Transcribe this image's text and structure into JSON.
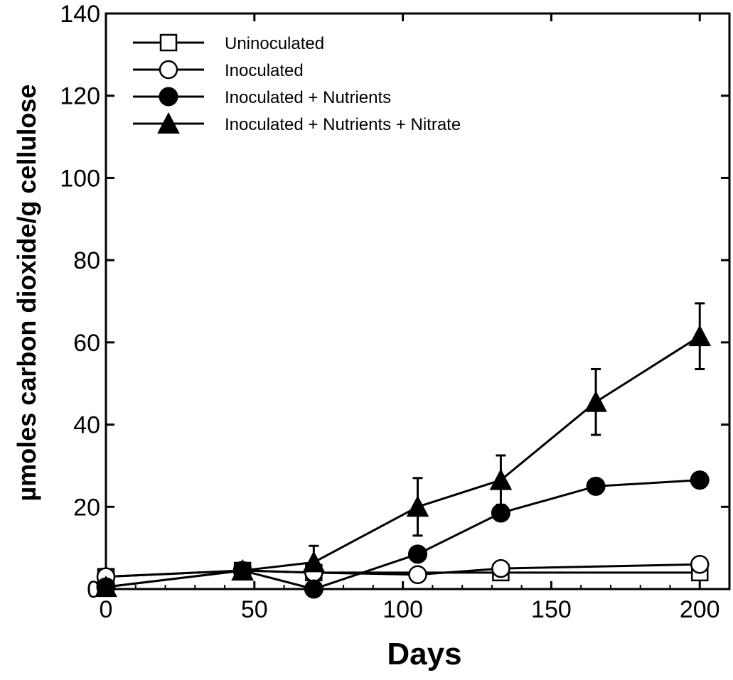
{
  "chart_data": {
    "type": "line",
    "xlabel": "Days",
    "ylabel": "µmoles carbon dioxide/g cellulose",
    "xlim": [
      0,
      210
    ],
    "ylim": [
      0,
      140
    ],
    "xticks": [
      0,
      50,
      100,
      150,
      200
    ],
    "yticks": [
      0,
      20,
      40,
      60,
      80,
      100,
      120,
      140
    ],
    "xtick_labels": [
      "0",
      "50",
      "100",
      "150",
      "200"
    ],
    "ytick_labels": [
      "0",
      "20",
      "40",
      "60",
      "80",
      "100",
      "120",
      "140"
    ],
    "grid": false,
    "legend_position": "top-left",
    "series": [
      {
        "name": "Uninoculated",
        "marker": "square-open",
        "points": [
          {
            "x": 0,
            "y": 3
          },
          {
            "x": 46,
            "y": 4.5
          },
          {
            "x": 70,
            "y": 4
          },
          {
            "x": 133,
            "y": 4
          },
          {
            "x": 200,
            "y": 4
          }
        ]
      },
      {
        "name": "Inoculated",
        "marker": "circle-open",
        "points": [
          {
            "x": 0,
            "y": 3
          },
          {
            "x": 46,
            "y": 4.5
          },
          {
            "x": 70,
            "y": 4
          },
          {
            "x": 105,
            "y": 3.5
          },
          {
            "x": 133,
            "y": 5
          },
          {
            "x": 200,
            "y": 6
          }
        ]
      },
      {
        "name": "Inoculated + Nutrients",
        "marker": "circle-filled",
        "points": [
          {
            "x": 0,
            "y": 0.5
          },
          {
            "x": 46,
            "y": 4.5
          },
          {
            "x": 70,
            "y": 0
          },
          {
            "x": 105,
            "y": 8.5
          },
          {
            "x": 133,
            "y": 18.5
          },
          {
            "x": 165,
            "y": 25
          },
          {
            "x": 200,
            "y": 26.5
          }
        ]
      },
      {
        "name": "Inoculated + Nutrients + Nitrate",
        "marker": "triangle-filled",
        "points": [
          {
            "x": 0,
            "y": 0.5
          },
          {
            "x": 46,
            "y": 4.5
          },
          {
            "x": 70,
            "y": 6.5,
            "err": 4
          },
          {
            "x": 105,
            "y": 20,
            "err": 7
          },
          {
            "x": 133,
            "y": 26.5,
            "err": 6
          },
          {
            "x": 165,
            "y": 45.5,
            "err": 8
          },
          {
            "x": 200,
            "y": 61.5,
            "err": 8
          }
        ]
      }
    ]
  }
}
